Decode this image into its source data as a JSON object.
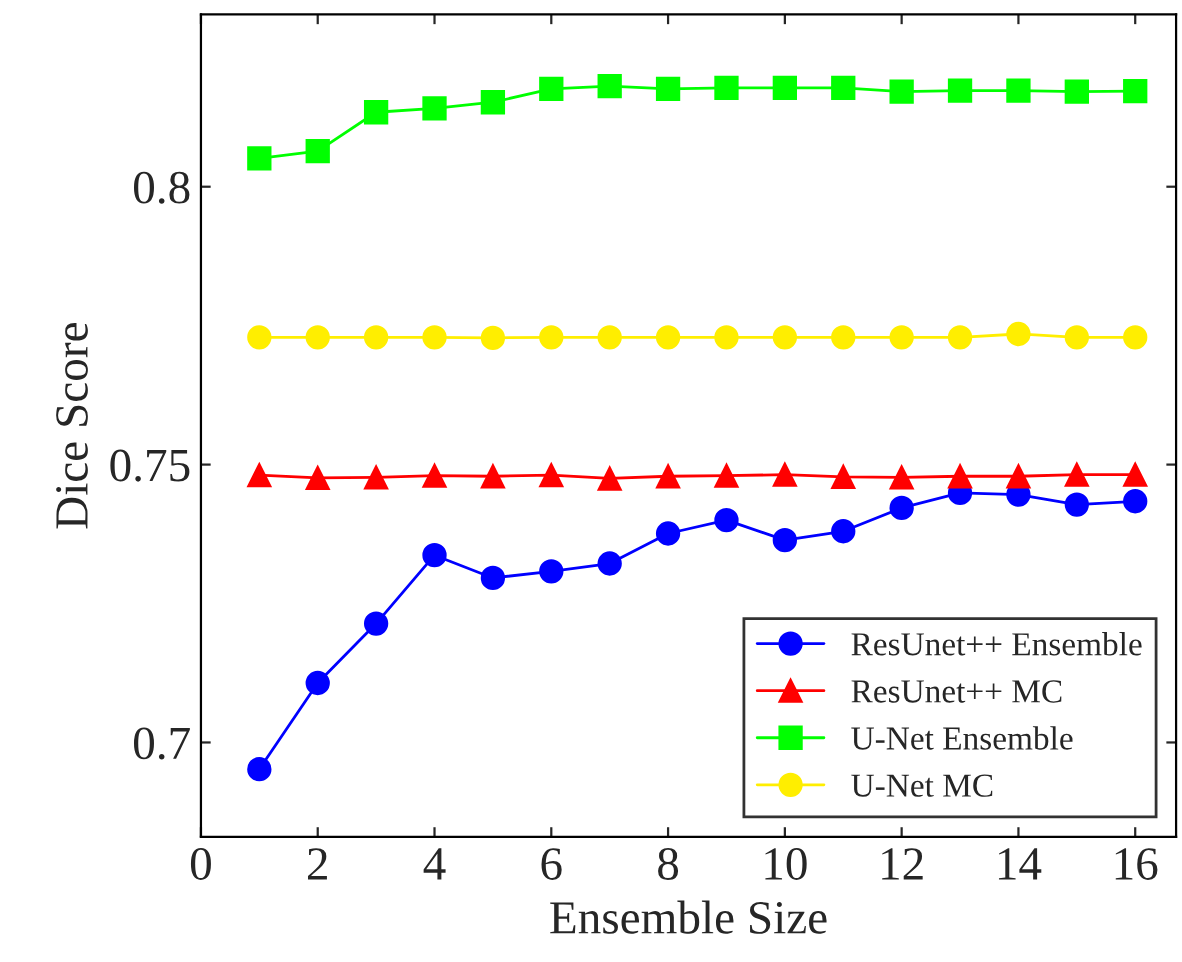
{
  "chart_data": {
    "type": "line",
    "xlabel": "Ensemble Size",
    "ylabel": "Dice Score",
    "x": [
      1,
      2,
      3,
      4,
      5,
      6,
      7,
      8,
      9,
      10,
      11,
      12,
      13,
      14,
      15,
      16
    ],
    "series": [
      {
        "name": "ResUnet++ Ensemble",
        "color": "#0000ff",
        "marker": "circle",
        "values": [
          0.6952,
          0.7107,
          0.7214,
          0.7337,
          0.7296,
          0.7308,
          0.7322,
          0.7376,
          0.74,
          0.7364,
          0.738,
          0.7422,
          0.7449,
          0.7446,
          0.7428,
          0.7434
        ]
      },
      {
        "name": "ResUnet++ MC",
        "color": "#ff0000",
        "marker": "triangle",
        "values": [
          0.7481,
          0.7476,
          0.7477,
          0.748,
          0.7479,
          0.7481,
          0.7475,
          0.7479,
          0.748,
          0.7482,
          0.7478,
          0.7477,
          0.7479,
          0.7479,
          0.7482,
          0.7482
        ]
      },
      {
        "name": "U-Net Ensemble",
        "color": "#00ff00",
        "marker": "square",
        "values": [
          0.8051,
          0.8064,
          0.8134,
          0.8141,
          0.8152,
          0.8176,
          0.8181,
          0.8176,
          0.8178,
          0.8178,
          0.8178,
          0.8171,
          0.8173,
          0.8173,
          0.8171,
          0.8172
        ]
      },
      {
        "name": "U-Net MC",
        "color": "#ffee00",
        "marker": "circle",
        "values": [
          0.7729,
          0.7729,
          0.7729,
          0.7729,
          0.7728,
          0.7729,
          0.7729,
          0.7729,
          0.7729,
          0.7729,
          0.7729,
          0.7729,
          0.7729,
          0.7735,
          0.7729,
          0.7729
        ]
      }
    ],
    "xlim": [
      0,
      16.7
    ],
    "xticks": [
      0,
      2,
      4,
      6,
      8,
      10,
      12,
      14,
      16
    ],
    "ylim": [
      0.683,
      0.831
    ],
    "yticks": [
      {
        "value": 0.7,
        "label": "0.7"
      },
      {
        "value": 0.75,
        "label": "0.75"
      },
      {
        "value": 0.8,
        "label": "0.8"
      }
    ],
    "grid": false,
    "legend": "bottom right"
  }
}
